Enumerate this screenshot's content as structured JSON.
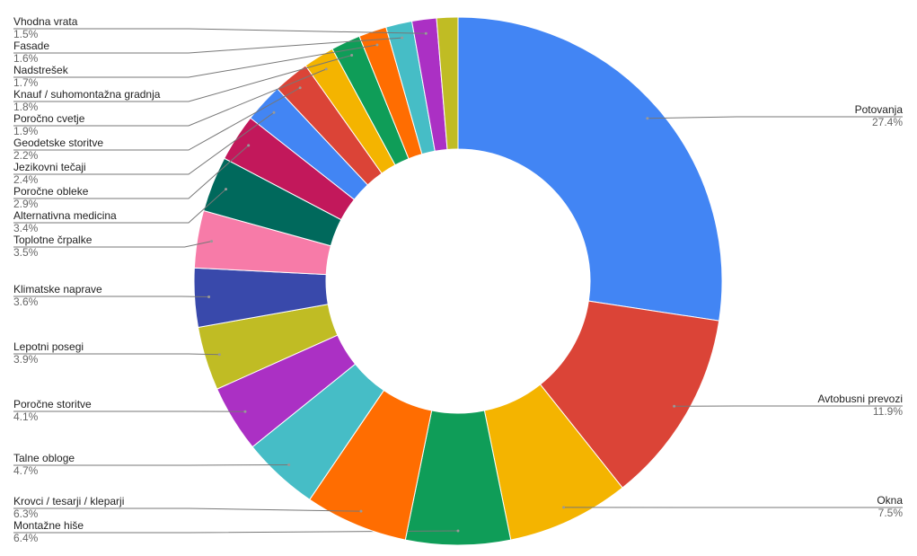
{
  "chart_data": {
    "type": "donut",
    "categories": [
      "Potovanja",
      "Avtobusni prevozi",
      "Okna",
      "Montažne hiše",
      "Krovci / tesarji / kleparji",
      "Talne obloge",
      "Poročne storitve",
      "Lepotni posegi",
      "Klimatske naprave",
      "Toplotne črpalke",
      "Alternativna medicina",
      "Poročne obleke",
      "Jezikovni tečaji",
      "Geodetske storitve",
      "Poročno cvetje",
      "Knauf / suhomontažna gradnja",
      "Nadstrešek",
      "Fasade",
      "Vhodna vrata",
      null
    ],
    "values": [
      27.4,
      11.9,
      7.5,
      6.4,
      6.3,
      4.7,
      4.1,
      3.9,
      3.6,
      3.5,
      3.4,
      2.9,
      2.4,
      2.2,
      1.9,
      1.8,
      1.7,
      1.6,
      1.5,
      1.3
    ],
    "value_labels": [
      "27.4%",
      "11.9%",
      "7.5%",
      "6.4%",
      "6.3%",
      "4.7%",
      "4.1%",
      "3.9%",
      "3.6%",
      "3.5%",
      "3.4%",
      "2.9%",
      "2.4%",
      "2.2%",
      "1.9%",
      "1.8%",
      "1.7%",
      "1.6%",
      "1.5%",
      null
    ],
    "colors": [
      "#4285f4",
      "#db4437",
      "#f4b400",
      "#0f9d58",
      "#ff6d01",
      "#46bdc6",
      "#ab30c4",
      "#c0bc24",
      "#3949ab",
      "#f77ba8",
      "#00695c",
      "#c2185b",
      "#4285f4",
      "#db4437",
      "#f4b400",
      "#0f9d58",
      "#ff6d01",
      "#46bdc6",
      "#ab30c4",
      "#c0bc24"
    ]
  }
}
